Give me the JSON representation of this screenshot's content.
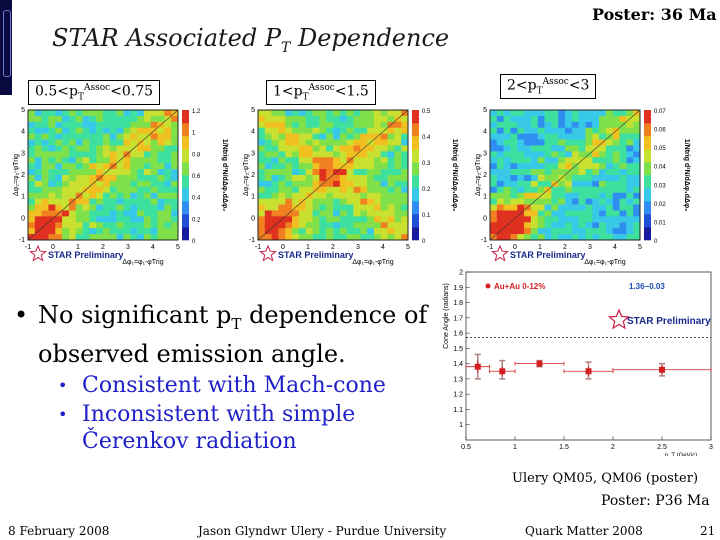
{
  "slide": {
    "title_main": "STAR Associated P",
    "title_sub": "T",
    "title_rest": " Dependence",
    "poster_top": "Poster: 36 Ma"
  },
  "panels": [
    {
      "label_pre": "0.5<p",
      "label_sub": "T",
      "label_sup": "Assoc",
      "label_post": "<0.75"
    },
    {
      "label_pre": "1<p",
      "label_sub": "T",
      "label_sup": "Assoc",
      "label_post": "<1.5"
    },
    {
      "label_pre": "2<p",
      "label_sub": "T",
      "label_sup": "Assoc",
      "label_post": "<3"
    }
  ],
  "heatmap_axes": {
    "x_label": "Δφ₁=φ₁-φTrig",
    "y_label": "Δφ₂=φ₂-φTrig",
    "z_label": "1/Ntrig d²N/dΔφ₁dΔφ₂",
    "x_ticks": [
      "-1",
      "0",
      "1",
      "2",
      "3",
      "4",
      "5"
    ],
    "y_ticks": [
      "-1",
      "0",
      "1",
      "2",
      "3",
      "4",
      "5"
    ],
    "colorbar_ticks": [
      [
        "1.2",
        "1",
        "0.8",
        "0.6",
        "0.4",
        "0.2",
        "0"
      ],
      [
        "0.5",
        "0.4",
        "0.3",
        "0.2",
        "0.1",
        "0"
      ],
      [
        "0.07",
        "0.06",
        "0.05",
        "0.04",
        "0.03",
        "0.02",
        "0.01",
        "0"
      ]
    ],
    "star_preliminary": "STAR Preliminary"
  },
  "bullets": {
    "main_pre": "No significant p",
    "main_sub": "T",
    "main_post": " dependence of observed emission angle.",
    "sub": [
      "Consistent with Mach-cone",
      "Inconsistent with simple Čerenkov radiation"
    ]
  },
  "cone_plot": {
    "legend": "Au+Au 0-12%",
    "fit_label": "1.36−0.03",
    "star_preliminary": "STAR Preliminary",
    "ylabel": "Cone Angle (radians)",
    "xlabel": "p_T (GeV/c)"
  },
  "chart_data": {
    "type": "scatter",
    "title": "",
    "xlabel": "p_T (GeV/c)",
    "ylabel": "Cone Angle (radians)",
    "xlim": [
      0.5,
      3.0
    ],
    "ylim": [
      0.9,
      2.0
    ],
    "x_ticks": [
      0.5,
      1,
      1.5,
      2,
      2.5,
      3
    ],
    "y_ticks": [
      1,
      1.1,
      1.2,
      1.3,
      1.4,
      1.5,
      1.6,
      1.7,
      1.8,
      1.9,
      2
    ],
    "legend": "Au+Au 0-12%",
    "fit_value": 1.36,
    "grid": false,
    "series": [
      {
        "name": "Au+Au 0-12%",
        "x": [
          0.62,
          0.87,
          1.25,
          1.75,
          2.5
        ],
        "y": [
          1.38,
          1.35,
          1.4,
          1.35,
          1.36
        ],
        "xerr": [
          0.12,
          0.13,
          0.25,
          0.25,
          0.5
        ],
        "yerr": [
          0.04,
          0.03,
          0.02,
          0.03,
          0.03
        ],
        "sys_low": [
          1.3,
          1.3,
          1.38,
          1.3,
          1.32
        ],
        "sys_high": [
          1.46,
          1.42,
          1.42,
          1.41,
          1.4
        ],
        "color": "#d42020"
      }
    ]
  },
  "citation": {
    "line1": "Ulery QM05, QM06 (poster)",
    "line2": "Poster: P36 Ma"
  },
  "footer": {
    "date": "8 February 2008",
    "author": "Jason Glyndwr Ulery - Purdue University",
    "conference": "Quark Matter 2008",
    "page": "21"
  },
  "colors": {
    "sub_bullet": "#2020c8",
    "marker": "#d42020",
    "sys_band": "#b08080"
  }
}
